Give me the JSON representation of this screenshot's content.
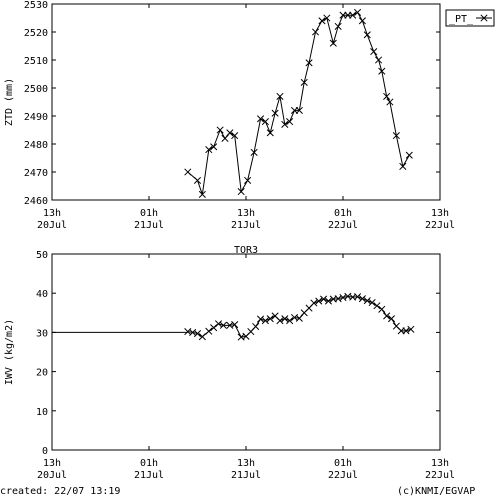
{
  "footer": {
    "created": "created: 22/07 13:19",
    "credit": "(c)KNMI/EGVAP"
  },
  "colors": {
    "axis": "#000000",
    "series": "#000000"
  },
  "chart_data": [
    {
      "type": "line",
      "title": "",
      "xlabel": "",
      "ylabel": "ZTD (mm)",
      "ylim": [
        2460,
        2530
      ],
      "yticks": [
        2460,
        2470,
        2480,
        2490,
        2500,
        2510,
        2520,
        2530
      ],
      "xlim_hours": [
        0,
        48
      ],
      "xticks": [
        {
          "hour": 0,
          "line1": "13h",
          "line2": "20Jul"
        },
        {
          "hour": 12,
          "line1": "01h",
          "line2": "21Jul"
        },
        {
          "hour": 24,
          "line1": "13h",
          "line2": "21Jul"
        },
        {
          "hour": 36,
          "line1": "01h",
          "line2": "22Jul"
        },
        {
          "hour": 48,
          "line1": "13h",
          "line2": "22Jul"
        }
      ],
      "legend": {
        "label": "_PT_",
        "placement": "top-right"
      },
      "series": [
        {
          "name": "_PT_",
          "points": [
            [
              16.8,
              2470
            ],
            [
              18.0,
              2467
            ],
            [
              18.6,
              2462
            ],
            [
              19.4,
              2478
            ],
            [
              20.0,
              2479
            ],
            [
              20.8,
              2485
            ],
            [
              21.4,
              2482
            ],
            [
              22.0,
              2484
            ],
            [
              22.6,
              2483
            ],
            [
              23.4,
              2463
            ],
            [
              24.2,
              2467
            ],
            [
              25.0,
              2477
            ],
            [
              25.8,
              2489
            ],
            [
              26.4,
              2488
            ],
            [
              27.0,
              2484
            ],
            [
              27.6,
              2491
            ],
            [
              28.2,
              2497
            ],
            [
              28.8,
              2487
            ],
            [
              29.4,
              2488
            ],
            [
              30.0,
              2492
            ],
            [
              30.6,
              2492
            ],
            [
              31.2,
              2502
            ],
            [
              31.8,
              2509
            ],
            [
              32.6,
              2520
            ],
            [
              33.4,
              2524
            ],
            [
              34.0,
              2525
            ],
            [
              34.8,
              2516
            ],
            [
              35.4,
              2522
            ],
            [
              36.0,
              2526
            ],
            [
              36.6,
              2526
            ],
            [
              37.2,
              2526
            ],
            [
              37.8,
              2527
            ],
            [
              38.4,
              2524
            ],
            [
              39.0,
              2519
            ],
            [
              39.8,
              2513
            ],
            [
              40.4,
              2510
            ],
            [
              40.8,
              2506
            ],
            [
              41.4,
              2497
            ],
            [
              41.8,
              2495
            ],
            [
              42.6,
              2483
            ],
            [
              43.4,
              2472
            ],
            [
              44.2,
              2476
            ]
          ]
        }
      ]
    },
    {
      "type": "line",
      "title": "TOR3",
      "xlabel": "",
      "ylabel": "IWV (kg/m2)",
      "ylim": [
        0,
        50
      ],
      "yticks": [
        0,
        10,
        20,
        30,
        40,
        50
      ],
      "xlim_hours": [
        0,
        48
      ],
      "xticks": [
        {
          "hour": 0,
          "line1": "13h",
          "line2": "20Jul"
        },
        {
          "hour": 12,
          "line1": "01h",
          "line2": "21Jul"
        },
        {
          "hour": 24,
          "line1": "13h",
          "line2": "21Jul"
        },
        {
          "hour": 36,
          "line1": "01h",
          "line2": "22Jul"
        },
        {
          "hour": 48,
          "line1": "13h",
          "line2": "22Jul"
        }
      ],
      "series": [
        {
          "name": "",
          "line_only_points": [
            [
              0,
              30
            ],
            [
              16.8,
              30
            ]
          ],
          "points": [
            [
              16.8,
              30.2
            ],
            [
              17.4,
              30.0
            ],
            [
              18.0,
              29.7
            ],
            [
              18.6,
              28.9
            ],
            [
              19.4,
              30.3
            ],
            [
              20.0,
              31.2
            ],
            [
              20.6,
              32.2
            ],
            [
              21.2,
              31.8
            ],
            [
              22.0,
              31.8
            ],
            [
              22.6,
              32.0
            ],
            [
              23.4,
              28.8
            ],
            [
              24.0,
              29.0
            ],
            [
              24.6,
              30.2
            ],
            [
              25.2,
              31.5
            ],
            [
              25.8,
              33.4
            ],
            [
              26.4,
              33.0
            ],
            [
              27.0,
              33.5
            ],
            [
              27.6,
              34.2
            ],
            [
              28.2,
              33.0
            ],
            [
              28.8,
              33.5
            ],
            [
              29.4,
              33.0
            ],
            [
              30.0,
              33.8
            ],
            [
              30.6,
              33.6
            ],
            [
              31.2,
              35.0
            ],
            [
              31.8,
              36.2
            ],
            [
              32.4,
              37.5
            ],
            [
              33.0,
              38.0
            ],
            [
              33.6,
              38.5
            ],
            [
              34.2,
              38.0
            ],
            [
              34.8,
              38.5
            ],
            [
              35.4,
              38.6
            ],
            [
              36.0,
              38.9
            ],
            [
              36.6,
              39.2
            ],
            [
              37.2,
              39.0
            ],
            [
              37.8,
              39.1
            ],
            [
              38.4,
              38.6
            ],
            [
              39.0,
              38.1
            ],
            [
              39.6,
              37.6
            ],
            [
              40.2,
              36.8
            ],
            [
              40.8,
              35.9
            ],
            [
              41.4,
              34.2
            ],
            [
              42.0,
              33.5
            ],
            [
              42.6,
              31.6
            ],
            [
              43.2,
              30.4
            ],
            [
              43.8,
              30.4
            ],
            [
              44.4,
              30.8
            ]
          ]
        }
      ]
    }
  ]
}
